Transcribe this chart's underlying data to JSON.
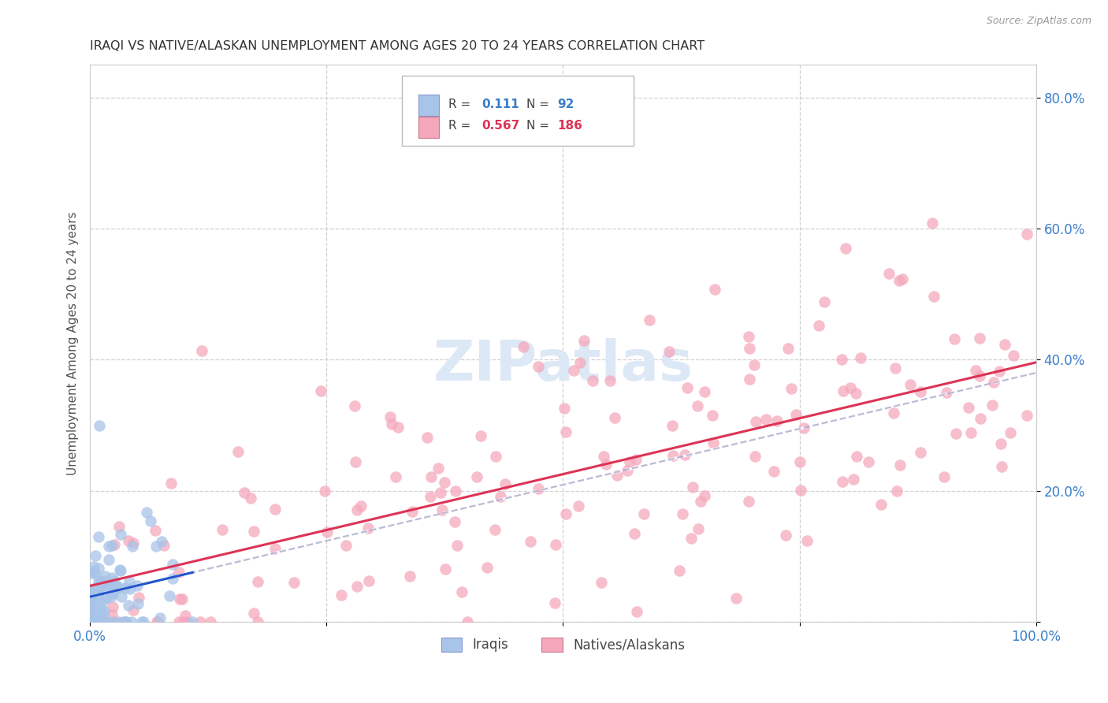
{
  "title": "IRAQI VS NATIVE/ALASKAN UNEMPLOYMENT AMONG AGES 20 TO 24 YEARS CORRELATION CHART",
  "source": "Source: ZipAtlas.com",
  "ylabel": "Unemployment Among Ages 20 to 24 years",
  "xlim": [
    0,
    1.0
  ],
  "ylim": [
    0,
    0.85
  ],
  "iraqis_color": "#a8c4e8",
  "natives_color": "#f5a8bc",
  "iraqis_edge_color": "#7ba7d8",
  "natives_edge_color": "#f07090",
  "iraqis_line_color": "#2255cc",
  "natives_line_color": "#dd3355",
  "dashed_line_color": "#aaaacc",
  "background_color": "#ffffff",
  "grid_color": "#cccccc",
  "tick_color": "#3a7dc9",
  "watermark_color": "#dce8f5",
  "title_color": "#333333",
  "ylabel_color": "#555555",
  "source_color": "#999999"
}
